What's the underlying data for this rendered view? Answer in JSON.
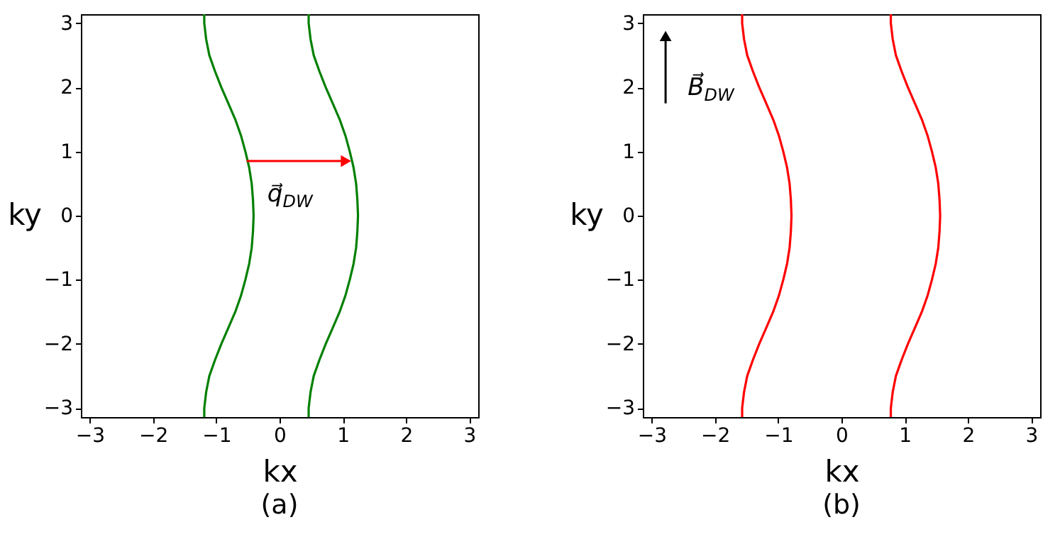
{
  "chart_data": [
    {
      "type": "line",
      "title": "(a)",
      "xlabel": "kx",
      "ylabel": "ky",
      "xlim": [
        -3.14,
        3.14
      ],
      "ylim": [
        -3.14,
        3.14
      ],
      "xticks": [
        -3,
        -2,
        -1,
        0,
        1,
        2,
        3
      ],
      "yticks": [
        -3,
        -2,
        -1,
        0,
        1,
        2,
        3
      ],
      "series": [
        {
          "color": "#008000",
          "x": [
            -1.19,
            -1.19,
            -1.16,
            -1.11,
            -1.02,
            -0.92,
            -0.81,
            -0.7,
            -0.61,
            -0.54,
            -0.48,
            -0.44,
            -0.42,
            -0.41,
            -0.42,
            -0.44,
            -0.48,
            -0.54,
            -0.61,
            -0.7,
            -0.81,
            -0.92,
            -1.02,
            -1.11,
            -1.16,
            -1.19,
            -1.19
          ],
          "values": [
            3.14,
            3,
            2.75,
            2.5,
            2.25,
            2,
            1.75,
            1.5,
            1.25,
            1,
            0.75,
            0.5,
            0.25,
            0,
            -0.25,
            -0.5,
            -0.75,
            -1,
            -1.25,
            -1.5,
            -1.75,
            -2,
            -2.25,
            -2.5,
            -2.75,
            -3,
            -3.14
          ]
        },
        {
          "color": "#008000",
          "x": [
            0.46,
            0.46,
            0.49,
            0.54,
            0.63,
            0.73,
            0.84,
            0.95,
            1.04,
            1.11,
            1.17,
            1.21,
            1.23,
            1.24,
            1.23,
            1.21,
            1.17,
            1.11,
            1.04,
            0.95,
            0.84,
            0.73,
            0.63,
            0.54,
            0.49,
            0.46,
            0.46
          ],
          "values": [
            3.14,
            3,
            2.75,
            2.5,
            2.25,
            2,
            1.75,
            1.5,
            1.25,
            1,
            0.75,
            0.5,
            0.25,
            0,
            -0.25,
            -0.5,
            -0.75,
            -1,
            -1.25,
            -1.5,
            -1.75,
            -2,
            -2.25,
            -2.5,
            -2.75,
            -3,
            -3.14
          ]
        }
      ],
      "annotations": [
        {
          "text": "q⃗$_{DW}$",
          "x": 1.1,
          "y": 0.85
        }
      ]
    },
    {
      "type": "line",
      "title": "(b)",
      "xlabel": "kx",
      "ylabel": "ky",
      "xlim": [
        -3.14,
        3.14
      ],
      "ylim": [
        -3.14,
        3.14
      ],
      "xticks": [
        -3,
        -2,
        -1,
        0,
        1,
        2,
        3
      ],
      "yticks": [
        -3,
        -2,
        -1,
        0,
        1,
        2,
        3
      ],
      "series": [
        {
          "color": "#ff0000",
          "x": [
            -1.57,
            -1.57,
            -1.54,
            -1.49,
            -1.4,
            -1.3,
            -1.19,
            -1.08,
            -0.99,
            -0.92,
            -0.86,
            -0.82,
            -0.8,
            -0.79,
            -0.8,
            -0.82,
            -0.86,
            -0.92,
            -0.99,
            -1.08,
            -1.19,
            -1.3,
            -1.4,
            -1.49,
            -1.54,
            -1.57,
            -1.57
          ],
          "values": [
            3.14,
            3,
            2.75,
            2.5,
            2.25,
            2,
            1.75,
            1.5,
            1.25,
            1,
            0.75,
            0.5,
            0.25,
            0,
            -0.25,
            -0.5,
            -0.75,
            -1,
            -1.25,
            -1.5,
            -1.75,
            -2,
            -2.25,
            -2.5,
            -2.75,
            -3,
            -3.14
          ]
        },
        {
          "color": "#ff0000",
          "x": [
            0.78,
            0.78,
            0.81,
            0.86,
            0.95,
            1.05,
            1.16,
            1.27,
            1.36,
            1.43,
            1.49,
            1.53,
            1.55,
            1.56,
            1.55,
            1.53,
            1.49,
            1.43,
            1.36,
            1.27,
            1.16,
            1.05,
            0.95,
            0.86,
            0.81,
            0.78,
            0.78
          ],
          "values": [
            3.14,
            3,
            2.75,
            2.5,
            2.25,
            2,
            1.75,
            1.5,
            1.25,
            1,
            0.75,
            0.5,
            0.25,
            0,
            -0.25,
            -0.5,
            -0.75,
            -1,
            -1.25,
            -1.5,
            -1.75,
            -2,
            -2.25,
            -2.5,
            -2.75,
            -3,
            -3.14
          ]
        }
      ],
      "annotations": [
        "B⃗$_{DW}$"
      ]
    }
  ]
}
